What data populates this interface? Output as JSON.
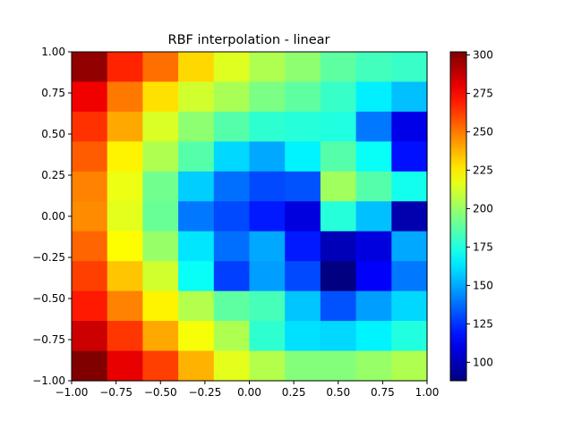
{
  "chart_data": {
    "type": "heatmap",
    "title": "RBF interpolation - linear",
    "xlabel": "",
    "ylabel": "",
    "xlim": [
      -1.0,
      1.0
    ],
    "ylim": [
      -1.0,
      1.0
    ],
    "x_ticks": [
      "−1.00",
      "−0.75",
      "−0.50",
      "−0.25",
      "0.00",
      "0.25",
      "0.50",
      "0.75",
      "1.00"
    ],
    "y_ticks": [
      "−1.00",
      "−0.75",
      "−0.50",
      "−0.25",
      "0.00",
      "0.25",
      "0.50",
      "0.75",
      "1.00"
    ],
    "colormap": "jet",
    "colorbar": {
      "min": 88,
      "max": 302,
      "ticks": [
        "100",
        "125",
        "150",
        "175",
        "200",
        "225",
        "250",
        "275",
        "300"
      ]
    },
    "grid": false,
    "rows_top_to_bottom": [
      [
        298,
        268,
        252,
        230,
        215,
        205,
        198,
        188,
        182,
        180
      ],
      [
        278,
        250,
        228,
        212,
        204,
        194,
        188,
        180,
        165,
        155
      ],
      [
        265,
        240,
        214,
        198,
        186,
        178,
        176,
        175,
        140,
        110
      ],
      [
        256,
        224,
        205,
        186,
        160,
        150,
        166,
        186,
        170,
        118
      ],
      [
        248,
        218,
        192,
        158,
        138,
        130,
        132,
        202,
        186,
        172
      ],
      [
        246,
        216,
        190,
        140,
        130,
        120,
        108,
        176,
        155,
        98
      ],
      [
        254,
        222,
        200,
        163,
        138,
        150,
        120,
        100,
        108,
        150
      ],
      [
        262,
        234,
        212,
        170,
        128,
        148,
        130,
        88,
        114,
        140
      ],
      [
        270,
        248,
        224,
        206,
        188,
        183,
        156,
        132,
        148,
        160
      ],
      [
        286,
        264,
        240,
        220,
        205,
        178,
        162,
        160,
        166,
        175
      ],
      [
        302,
        280,
        262,
        238,
        216,
        206,
        196,
        196,
        200,
        205
      ]
    ]
  }
}
